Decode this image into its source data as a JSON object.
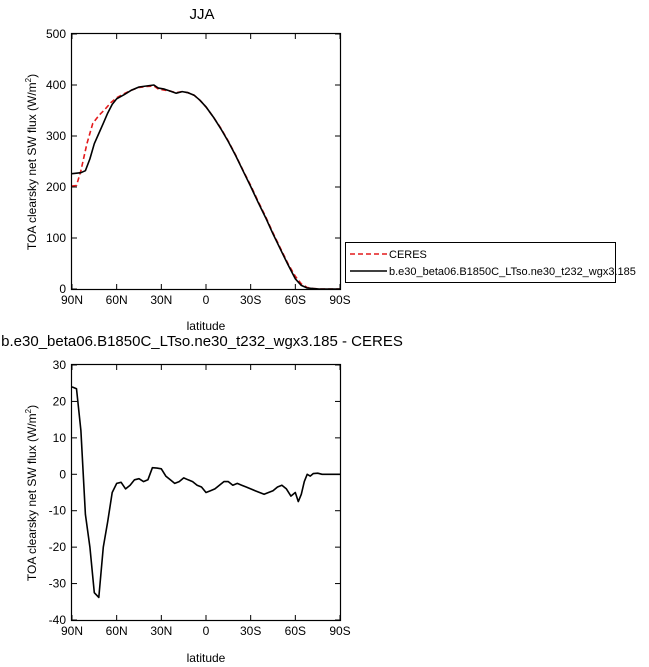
{
  "chart_data": [
    {
      "type": "line",
      "title": "JJA",
      "xlabel": "latitude",
      "ylabel_main": "TOA clearsky net SW flux (W/m",
      "ylabel_sup": "2",
      "ylabel_tail": ")",
      "xlim": [
        90,
        -90
      ],
      "ylim": [
        0,
        500
      ],
      "xtick_values": [
        90,
        60,
        30,
        0,
        -30,
        -60,
        -90
      ],
      "xtick_labels": [
        "90N",
        "60N",
        "30N",
        "0",
        "30S",
        "60S",
        "90S"
      ],
      "ytick_values": [
        0,
        100,
        200,
        300,
        400,
        500
      ],
      "ytick_labels": [
        "0",
        "100",
        "200",
        "300",
        "400",
        "500"
      ],
      "legend_position": "right",
      "series": [
        {
          "name": "CERES",
          "color": "#e41a1c",
          "dash": "dashed",
          "x": [
            90,
            87,
            84,
            80,
            76,
            72,
            68,
            64,
            60,
            55,
            50,
            45,
            40,
            35,
            32,
            28,
            24,
            20,
            16,
            12,
            8,
            4,
            0,
            -5,
            -10,
            -15,
            -20,
            -25,
            -30,
            -35,
            -40,
            -45,
            -50,
            -55,
            -60,
            -64,
            -68,
            -72,
            -76,
            -80,
            -84,
            -90
          ],
          "y": [
            202,
            203,
            232,
            285,
            325,
            340,
            352,
            365,
            375,
            383,
            390,
            395,
            397,
            398,
            392,
            390,
            388,
            385,
            387,
            385,
            380,
            370,
            357,
            337,
            315,
            290,
            262,
            232,
            203,
            172,
            142,
            110,
            80,
            50,
            25,
            10,
            3,
            1,
            0,
            0,
            0,
            0
          ]
        },
        {
          "name": "b.e30_beta06.B1850C_LTso.ne30_t232_wgx3.185",
          "color": "#000000",
          "dash": "solid",
          "x": [
            90,
            87,
            84,
            81,
            78,
            75,
            72,
            69,
            66,
            63,
            60,
            55,
            50,
            45,
            40,
            35,
            32,
            28,
            24,
            20,
            16,
            12,
            8,
            4,
            0,
            -5,
            -10,
            -15,
            -20,
            -25,
            -30,
            -35,
            -40,
            -45,
            -50,
            -55,
            -60,
            -64,
            -68,
            -72,
            -76,
            -80,
            -84,
            -90
          ],
          "y": [
            226,
            227,
            228,
            232,
            255,
            285,
            305,
            325,
            345,
            362,
            373,
            381,
            390,
            396,
            398,
            400,
            394,
            392,
            388,
            384,
            387,
            385,
            380,
            370,
            357,
            337,
            314,
            289,
            261,
            231,
            201,
            170,
            140,
            108,
            78,
            48,
            20,
            7,
            2,
            1,
            0,
            0,
            0,
            0
          ]
        }
      ]
    },
    {
      "type": "line",
      "title": "b.e30_beta06.B1850C_LTso.ne30_t232_wgx3.185 - CERES",
      "xlabel": "latitude",
      "ylabel_main": "TOA clearsky net SW flux (W/m",
      "ylabel_sup": "2",
      "ylabel_tail": ")",
      "xlim": [
        90,
        -90
      ],
      "ylim": [
        -40,
        30
      ],
      "xtick_values": [
        90,
        60,
        30,
        0,
        -30,
        -60,
        -90
      ],
      "xtick_labels": [
        "90N",
        "60N",
        "30N",
        "0",
        "30S",
        "60S",
        "90S"
      ],
      "ytick_values": [
        -40,
        -30,
        -20,
        -10,
        0,
        10,
        20,
        30
      ],
      "ytick_labels": [
        "-40",
        "-30",
        "-20",
        "-10",
        "0",
        "10",
        "20",
        "30"
      ],
      "series": [
        {
          "color": "#000000",
          "dash": "solid",
          "x": [
            90,
            87,
            84,
            81,
            78,
            75,
            72,
            69,
            66,
            63,
            60,
            57,
            54,
            51,
            48,
            45,
            42,
            39,
            36,
            33,
            30,
            27,
            24,
            21,
            18,
            15,
            12,
            9,
            6,
            3,
            0,
            -3,
            -6,
            -9,
            -12,
            -15,
            -18,
            -21,
            -24,
            -27,
            -30,
            -33,
            -36,
            -39,
            -42,
            -45,
            -48,
            -51,
            -54,
            -57,
            -60,
            -62,
            -64,
            -66,
            -68,
            -70,
            -72,
            -75,
            -78,
            -81,
            -84,
            -87,
            -90
          ],
          "y": [
            24,
            23.5,
            12,
            -11,
            -20,
            -32.5,
            -33.8,
            -20,
            -13,
            -5,
            -2.5,
            -2.2,
            -4,
            -3,
            -1.5,
            -1.2,
            -2,
            -1.5,
            1.8,
            1.7,
            1.5,
            -0.5,
            -1.5,
            -2.5,
            -2,
            -1,
            -1.5,
            -2,
            -3,
            -3.5,
            -5,
            -4.5,
            -4,
            -3,
            -2,
            -2,
            -3,
            -2.5,
            -3,
            -3.5,
            -4,
            -4.5,
            -5,
            -5.5,
            -5,
            -4.5,
            -3.5,
            -3,
            -4,
            -6,
            -5,
            -7.5,
            -5.5,
            -2,
            0,
            -0.5,
            0.2,
            0.3,
            0,
            0,
            0,
            0,
            0
          ]
        }
      ]
    }
  ]
}
